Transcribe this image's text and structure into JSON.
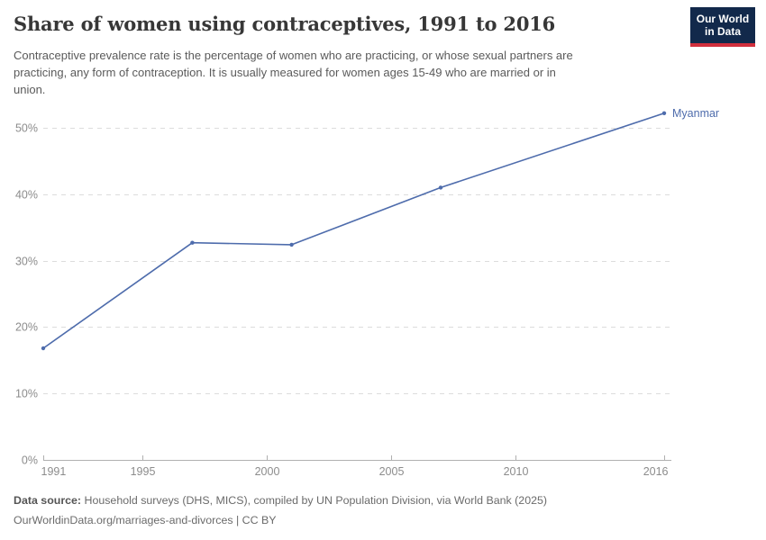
{
  "header": {
    "title": "Share of women using contraceptives, 1991 to 2016",
    "subtitle_lines": [
      "Contraceptive prevalence rate is the percentage of women who are practicing, or whose sexual partners are",
      "practicing, any form of contraception. It is usually measured for women ages 15-49 who are married or in",
      "union."
    ],
    "logo": {
      "line1": "Our World",
      "line2": "in Data"
    }
  },
  "chart_data": {
    "type": "line",
    "title": "Share of women using contraceptives, 1991 to 2016",
    "series": [
      {
        "name": "Myanmar",
        "x": [
          1991,
          1997,
          2001,
          2007,
          2016
        ],
        "values": [
          16.8,
          32.7,
          32.4,
          41.0,
          52.2
        ]
      }
    ],
    "x_ticks": [
      1991,
      1995,
      2000,
      2005,
      2010,
      2016
    ],
    "y_ticks": [
      0,
      10,
      20,
      30,
      40,
      50
    ],
    "y_tick_suffix": "%",
    "xlim": [
      1991,
      2016
    ],
    "ylim": [
      0,
      55
    ],
    "grid": "horizontal-dashed",
    "legend": "entity-label-at-line-end",
    "line_color": "#4e6cac"
  },
  "footer": {
    "source_label": "Data source:",
    "source_text": " Household surveys (DHS, MICS), compiled by UN Population Division, via World Bank (2025)",
    "citation": "OurWorldinData.org/marriages-and-divorces | CC BY"
  },
  "colors": {
    "logo_bg": "#12294b",
    "logo_stripe": "#d12f3d",
    "grid": "#dcdcdc",
    "axis": "#b0b0b0",
    "tick_label": "#8c8c8c",
    "title": "#373737",
    "subtitle": "#5a5a5a"
  }
}
